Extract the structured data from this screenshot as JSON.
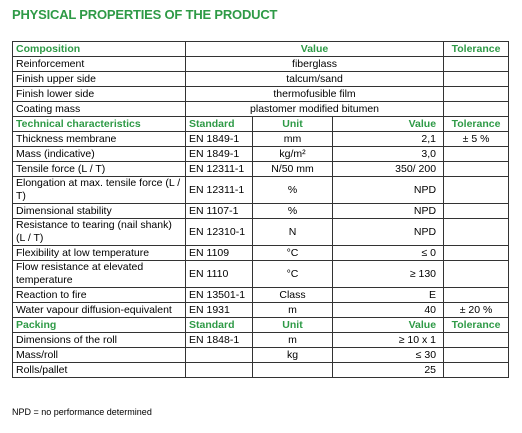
{
  "title": "PHYSICAL PROPERTIES OF THE PRODUCT",
  "table": {
    "sections": [
      {
        "header": [
          "Composition",
          "Value",
          "Tolerance"
        ],
        "rows": [
          {
            "label": "Reinforcement",
            "value": "fiberglass"
          },
          {
            "label": "Finish upper side",
            "value": "talcum/sand"
          },
          {
            "label": "Finish lower side",
            "value": "thermofusible film"
          },
          {
            "label": "Coating mass",
            "value": "plastomer modified bitumen"
          }
        ]
      },
      {
        "header": [
          "Technical characteristics",
          "Standard",
          "Unit",
          "Value",
          "Tolerance"
        ],
        "rows": [
          {
            "label": "Thickness membrane",
            "standard": "EN 1849-1",
            "unit": "mm",
            "value": "2,1",
            "tolerance": "± 5 %"
          },
          {
            "label": "Mass (indicative)",
            "standard": "EN 1849-1",
            "unit": "kg/m²",
            "value": "3,0"
          },
          {
            "label": "Tensile force (L / T)",
            "standard": "EN 12311-1",
            "unit": "N/50 mm",
            "value": "350/ 200"
          },
          {
            "label": "Elongation at max. tensile force (L / T)",
            "standard": "EN 12311-1",
            "unit": "%",
            "value": "NPD"
          },
          {
            "label": "Dimensional stability",
            "standard": "EN 1107-1",
            "unit": "%",
            "value": "NPD"
          },
          {
            "label": "Resistance to tearing (nail shank) (L / T)",
            "standard": "EN 12310-1",
            "unit": "N",
            "value": "NPD"
          },
          {
            "label": "Flexibility at low temperature",
            "standard": "EN 1109",
            "unit": "°C",
            "value": "≤ 0"
          },
          {
            "label": "Flow resistance at elevated temperature",
            "standard": "EN 1110",
            "unit": "°C",
            "value": "≥ 130"
          },
          {
            "label": "Reaction to fire",
            "standard": "EN 13501-1",
            "unit": "Class",
            "value": "E"
          },
          {
            "label": "Water vapour diffusion-equivalent",
            "standard": "EN 1931",
            "unit": "m",
            "value": "40",
            "tolerance": "± 20 %"
          }
        ]
      },
      {
        "header": [
          "Packing",
          "Standard",
          "Unit",
          "Value",
          "Tolerance"
        ],
        "rows": [
          {
            "label": "Dimensions of the roll",
            "standard": "EN 1848-1",
            "unit": "m",
            "value": "≥ 10 x 1"
          },
          {
            "label": "Mass/roll",
            "unit": "kg",
            "value": "≤ 30"
          },
          {
            "label": "Rolls/pallet",
            "value": "25"
          }
        ]
      }
    ]
  },
  "footnote": "NPD = no performance determined"
}
